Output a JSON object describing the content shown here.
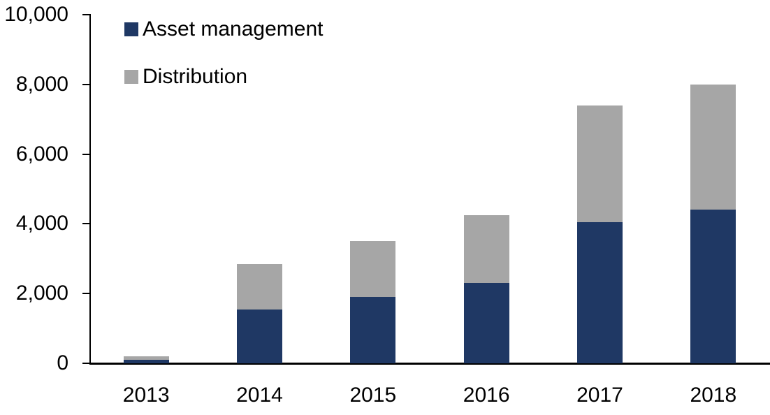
{
  "chart_data": {
    "type": "bar",
    "stacked": true,
    "title": "",
    "xlabel": "",
    "ylabel": "",
    "categories": [
      "2013",
      "2014",
      "2015",
      "2016",
      "2017",
      "2018"
    ],
    "series": [
      {
        "name": "Asset management",
        "color": "#1F3864",
        "values": [
          100,
          1550,
          1900,
          2300,
          4050,
          4400
        ]
      },
      {
        "name": "Distribution",
        "color": "#A6A6A6",
        "values": [
          100,
          1300,
          1600,
          1950,
          3350,
          3600
        ]
      }
    ],
    "ylim": [
      0,
      10000
    ],
    "ytick_interval": 2000,
    "ytick_labels": [
      "0",
      "2,000",
      "4,000",
      "6,000",
      "8,000",
      "10,000"
    ],
    "grid": false,
    "legend_position": "top-left",
    "axis_color": "#000000",
    "text_color": "#000000"
  }
}
